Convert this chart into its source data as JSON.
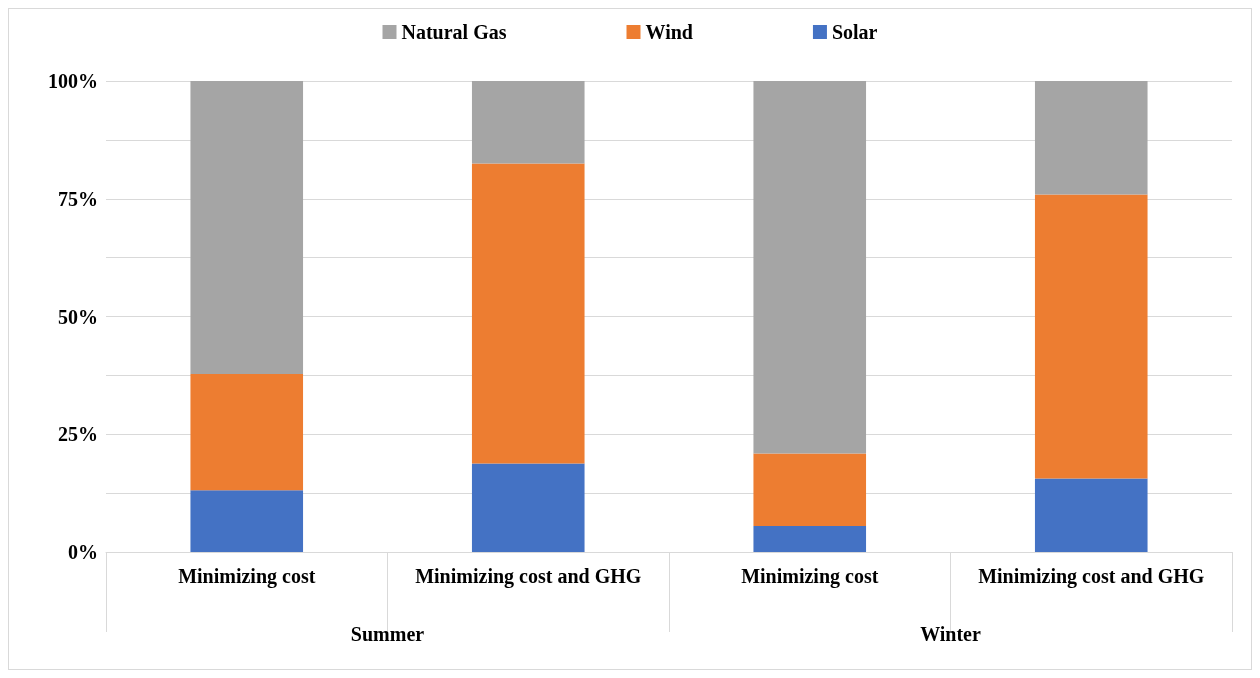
{
  "chart_data": {
    "type": "bar",
    "stacked": true,
    "categories": [
      "Minimizing cost",
      "Minimizing cost and GHG",
      "Minimizing cost",
      "Minimizing cost and GHG"
    ],
    "series": [
      {
        "name": "Solar",
        "color": "#4472c4",
        "values": [
          13.1,
          18.8,
          5.5,
          15.6
        ]
      },
      {
        "name": "Wind",
        "color": "#ed7d31",
        "values": [
          24.7,
          63.7,
          15.4,
          60.3
        ]
      },
      {
        "name": "Natural Gas",
        "color": "#a5a5a5",
        "values": [
          62.2,
          17.5,
          79.1,
          24.1
        ]
      }
    ],
    "annotations": [
      "Summer",
      "Winter"
    ],
    "ylim": [
      0,
      100
    ],
    "yticks": [
      {
        "value": 0,
        "label": "0%"
      },
      {
        "value": 12.5,
        "label": null
      },
      {
        "value": 25,
        "label": "25%"
      },
      {
        "value": 37.5,
        "label": null
      },
      {
        "value": 50,
        "label": "50%"
      },
      {
        "value": 62.5,
        "label": null
      },
      {
        "value": 75,
        "label": "75%"
      },
      {
        "value": 87.5,
        "label": null
      },
      {
        "value": 100,
        "label": "100%"
      }
    ],
    "grid": "y",
    "legend": "top"
  }
}
